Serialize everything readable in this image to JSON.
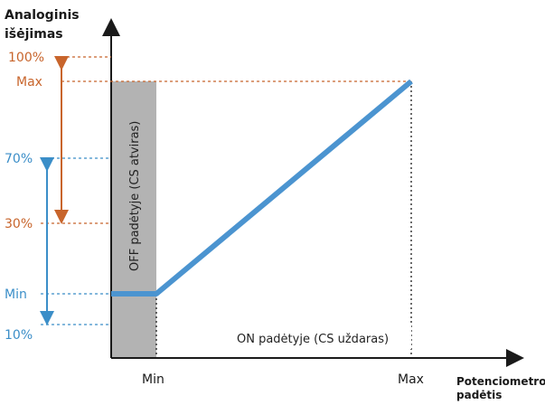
{
  "y_axis_title": [
    "Analoginis",
    "išėjimas"
  ],
  "x_axis_title": [
    "Potenciometro",
    "padėtis"
  ],
  "y_ticks_orange": [
    "100%",
    "Max",
    "30%"
  ],
  "y_ticks_blue": [
    "70%",
    "Min",
    "10%"
  ],
  "x_ticks": [
    "Min",
    "Max"
  ],
  "off_region_label": "OFF padėtyje (CS atviras)",
  "on_region_label": "ON padėtyje (CS uždaras)",
  "colors": {
    "orange": "#c8652c",
    "blue": "#3b8ec8",
    "line": "#4b94d0",
    "shade": "#b3b3b3",
    "axis": "#1a1a1a"
  }
}
